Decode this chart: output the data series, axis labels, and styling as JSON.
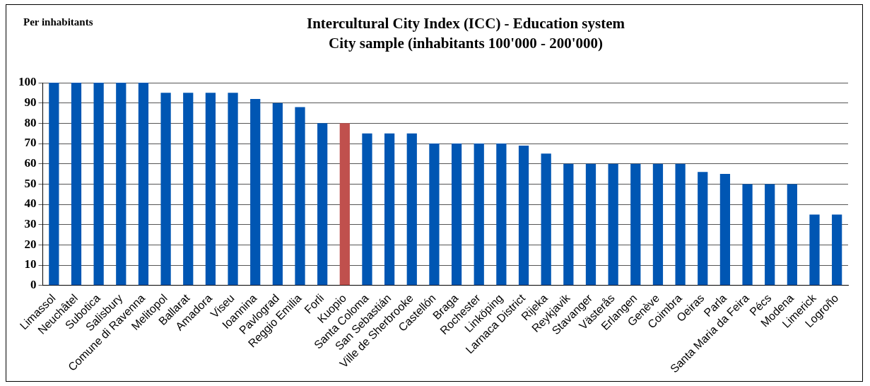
{
  "chart_data": {
    "type": "bar",
    "title": [
      "Intercultural City Index (ICC) - Education system",
      "City sample (inhabitants 100'000 - 200'000)"
    ],
    "ylabel": "Per inhabitants",
    "categories": [
      "Limassol",
      "Neuchâtel",
      "Subotica",
      "Salisbury",
      "Comune di Ravenna",
      "Melitopol",
      "Ballarat",
      "Amadora",
      "Viseu",
      "Ioannina",
      "Pavlograd",
      "Reggio Emilia",
      "Forli",
      "Kuopio",
      "Santa Coloma",
      "San Sebastián",
      "Ville de Sherbrooke",
      "Castellón",
      "Braga",
      "Rochester",
      "Linköping",
      "Larnaca District",
      "Rijeka",
      "Reykjavik",
      "Stavanger",
      "Västerås",
      "Erlangen",
      "Genève",
      "Coimbra",
      "Oeiras",
      "Parla",
      "Santa Maria da Feira",
      "Pécs",
      "Modena",
      "Limerick",
      "Logroño"
    ],
    "values": [
      100,
      100,
      100,
      100,
      100,
      95,
      95,
      95,
      95,
      92,
      90,
      88,
      80,
      80,
      75,
      75,
      75,
      70,
      70,
      70,
      70,
      69,
      65,
      60,
      60,
      60,
      60,
      60,
      60,
      56,
      55,
      50,
      50,
      50,
      35,
      35
    ],
    "colors": [
      "#0056b3",
      "#0056b3",
      "#0056b3",
      "#0056b3",
      "#0056b3",
      "#0056b3",
      "#0056b3",
      "#0056b3",
      "#0056b3",
      "#0056b3",
      "#0056b3",
      "#0056b3",
      "#0056b3",
      "#c0504d",
      "#0056b3",
      "#0056b3",
      "#0056b3",
      "#0056b3",
      "#0056b3",
      "#0056b3",
      "#0056b3",
      "#0056b3",
      "#0056b3",
      "#0056b3",
      "#0056b3",
      "#0056b3",
      "#0056b3",
      "#0056b3",
      "#0056b3",
      "#0056b3",
      "#0056b3",
      "#0056b3",
      "#0056b3",
      "#0056b3",
      "#0056b3",
      "#0056b3"
    ],
    "ylim": [
      0,
      100
    ],
    "yticks": [
      0,
      10,
      20,
      30,
      40,
      50,
      60,
      70,
      80,
      90,
      100
    ],
    "grid": "y",
    "legend": false
  }
}
